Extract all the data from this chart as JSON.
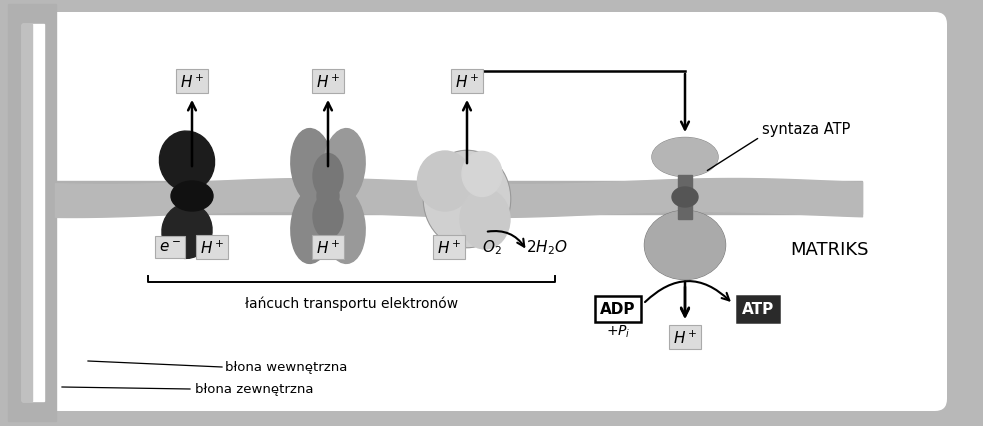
{
  "bg_color": "#f0f0f0",
  "outer_fill": "#d8d8d8",
  "inner_fill": "#ffffff",
  "mem_color": "#aaaaaa",
  "mem_dark": "#888888",
  "complex1_dark": "#1a1a1a",
  "complex1_mid": "#444444",
  "complex2_color": "#777777",
  "complex3_color": "#c0c0c0",
  "complex3_dark": "#888888",
  "atp_top_color": "#b0b0b0",
  "atp_bot_color": "#999999",
  "atp_mid_color": "#555555",
  "label_bg": "#e0e0e0",
  "label_edge": "#aaaaaa",
  "atp_box_bg": "#2a2a2a",
  "adp_box_bg": "#ffffff",
  "text_matriks": "MATRIKS",
  "text_syntaza": "syntaza ATP",
  "text_lancuch": "łańcuch transportu elektronów",
  "text_blona_wewn": "błona wewnętrzna",
  "text_blona_zewn": "błona zewnętrzna"
}
